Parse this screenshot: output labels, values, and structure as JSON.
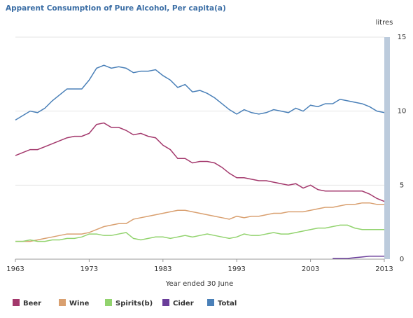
{
  "chart_data": {
    "type": "line",
    "title": "Apparent Consumption of Pure Alcohol, Per capita(a)",
    "xlabel": "Year ended 30 June",
    "ylabel": "litres",
    "x": [
      1963,
      1964,
      1965,
      1966,
      1967,
      1968,
      1969,
      1970,
      1971,
      1972,
      1973,
      1974,
      1975,
      1976,
      1977,
      1978,
      1979,
      1980,
      1981,
      1982,
      1983,
      1984,
      1985,
      1986,
      1987,
      1988,
      1989,
      1990,
      1991,
      1992,
      1993,
      1994,
      1995,
      1996,
      1997,
      1998,
      1999,
      2000,
      2001,
      2002,
      2003,
      2004,
      2005,
      2006,
      2007,
      2008,
      2009,
      2010,
      2011,
      2012,
      2013
    ],
    "xlim": [
      1963,
      2013
    ],
    "xticks": [
      1963,
      1973,
      1983,
      1993,
      2003,
      2013
    ],
    "ylim": [
      0,
      15
    ],
    "yticks": [
      0,
      5,
      10,
      15
    ],
    "grid": true,
    "legend": "bottom",
    "series": [
      {
        "name": "Beer",
        "color": "#a3386c",
        "values": [
          7.0,
          7.2,
          7.4,
          7.4,
          7.6,
          7.8,
          8.0,
          8.2,
          8.3,
          8.3,
          8.5,
          9.1,
          9.2,
          8.9,
          8.9,
          8.7,
          8.4,
          8.5,
          8.3,
          8.2,
          7.7,
          7.4,
          6.8,
          6.8,
          6.5,
          6.6,
          6.6,
          6.5,
          6.2,
          5.8,
          5.5,
          5.5,
          5.4,
          5.3,
          5.3,
          5.2,
          5.1,
          5.0,
          5.1,
          4.8,
          5.0,
          4.7,
          4.6,
          4.6,
          4.6,
          4.6,
          4.6,
          4.6,
          4.4,
          4.1,
          3.9
        ]
      },
      {
        "name": "Wine",
        "color": "#d9a070",
        "values": [
          1.2,
          1.2,
          1.2,
          1.3,
          1.4,
          1.5,
          1.6,
          1.7,
          1.7,
          1.7,
          1.8,
          2.0,
          2.2,
          2.3,
          2.4,
          2.4,
          2.7,
          2.8,
          2.9,
          3.0,
          3.1,
          3.2,
          3.3,
          3.3,
          3.2,
          3.1,
          3.0,
          2.9,
          2.8,
          2.7,
          2.9,
          2.8,
          2.9,
          2.9,
          3.0,
          3.1,
          3.1,
          3.2,
          3.2,
          3.2,
          3.3,
          3.4,
          3.5,
          3.5,
          3.6,
          3.7,
          3.7,
          3.8,
          3.8,
          3.7,
          3.7
        ]
      },
      {
        "name": "Spirits(b)",
        "color": "#92d36e",
        "values": [
          1.2,
          1.2,
          1.3,
          1.2,
          1.2,
          1.3,
          1.3,
          1.4,
          1.4,
          1.5,
          1.7,
          1.7,
          1.6,
          1.6,
          1.7,
          1.8,
          1.4,
          1.3,
          1.4,
          1.5,
          1.5,
          1.4,
          1.5,
          1.6,
          1.5,
          1.6,
          1.7,
          1.6,
          1.5,
          1.4,
          1.5,
          1.7,
          1.6,
          1.6,
          1.7,
          1.8,
          1.7,
          1.7,
          1.8,
          1.9,
          2.0,
          2.1,
          2.1,
          2.2,
          2.3,
          2.3,
          2.1,
          2.0,
          2.0,
          2.0,
          2.0
        ]
      },
      {
        "name": "Cider",
        "color": "#6a3d9a",
        "values": [
          null,
          null,
          null,
          null,
          null,
          null,
          null,
          null,
          null,
          null,
          null,
          null,
          null,
          null,
          null,
          null,
          null,
          null,
          null,
          null,
          null,
          null,
          null,
          null,
          null,
          null,
          null,
          null,
          null,
          null,
          null,
          null,
          null,
          null,
          null,
          null,
          null,
          null,
          null,
          null,
          null,
          null,
          null,
          0.05,
          0.05,
          0.05,
          0.1,
          0.15,
          0.2,
          0.2,
          0.2
        ]
      },
      {
        "name": "Total",
        "color": "#4a80b8",
        "values": [
          9.4,
          9.7,
          10.0,
          9.9,
          10.2,
          10.7,
          11.1,
          11.5,
          11.5,
          11.5,
          12.1,
          12.9,
          13.1,
          12.9,
          13.0,
          12.9,
          12.6,
          12.7,
          12.7,
          12.8,
          12.4,
          12.1,
          11.6,
          11.8,
          11.3,
          11.4,
          11.2,
          10.9,
          10.5,
          10.1,
          9.8,
          10.1,
          9.9,
          9.8,
          9.9,
          10.1,
          10.0,
          9.9,
          10.2,
          10.0,
          10.4,
          10.3,
          10.5,
          10.5,
          10.8,
          10.7,
          10.6,
          10.5,
          10.3,
          10.0,
          9.9
        ]
      }
    ]
  }
}
